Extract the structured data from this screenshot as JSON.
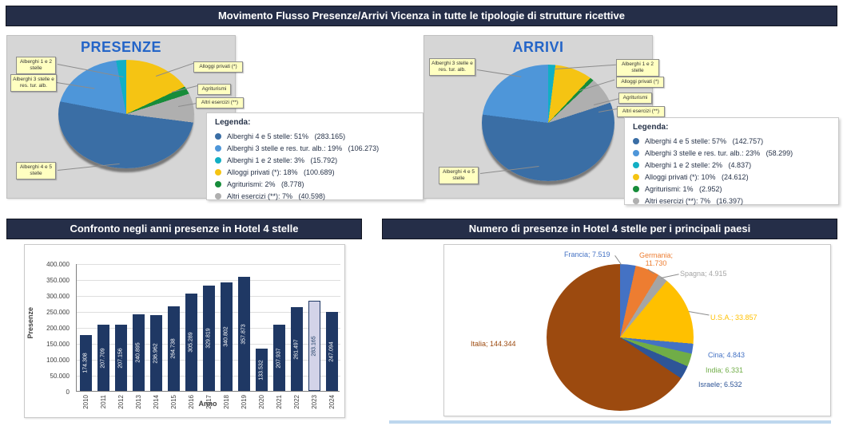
{
  "header": {
    "title": "Movimento Flusso Presenze/Arrivi Vicenza in tutte le tipologie di strutture ricettive"
  },
  "chart_data": [
    {
      "type": "pie",
      "title": "PRESENZE",
      "legend_title": "Legenda:",
      "legend_position": "right",
      "slices": [
        {
          "label": "Alberghi 4 e 5 stelle",
          "pct": 51,
          "value": 283165,
          "value_label": "283.165",
          "color": "#3A6EA5"
        },
        {
          "label": "Alberghi 3 stelle e res. tur. alb.",
          "pct": 19,
          "value": 106273,
          "value_label": "106.273",
          "color": "#4E96D9"
        },
        {
          "label": "Alberghi 1 e 2 stelle",
          "pct": 3,
          "value": 15792,
          "value_label": "15.792",
          "color": "#12AFC4"
        },
        {
          "label": "Alloggi privati (*)",
          "pct": 18,
          "value": 100689,
          "value_label": "100.689",
          "color": "#F5C413"
        },
        {
          "label": "Agriturismi",
          "pct": 2,
          "value": 8778,
          "value_label": "8.778",
          "color": "#178C3A"
        },
        {
          "label": "Altri esercizi (**)",
          "pct": 7,
          "value": 40598,
          "value_label": "40.598",
          "color": "#AFAFAF"
        }
      ],
      "draw_order": [
        3,
        4,
        5,
        0,
        1,
        2
      ]
    },
    {
      "type": "pie",
      "title": "ARRIVI",
      "legend_title": "Legenda:",
      "legend_position": "right",
      "slices": [
        {
          "label": "Alberghi 4 e 5 stelle",
          "pct": 57,
          "value": 142757,
          "value_label": "142.757",
          "color": "#3A6EA5"
        },
        {
          "label": "Alberghi 3 stelle e res. tur. alb.",
          "pct": 23,
          "value": 58299,
          "value_label": "58.299",
          "color": "#4E96D9"
        },
        {
          "label": "Alberghi 1 e 2 stelle",
          "pct": 2,
          "value": 4837,
          "value_label": "4.837",
          "color": "#12AFC4"
        },
        {
          "label": "Alloggi privati (*)",
          "pct": 10,
          "value": 24612,
          "value_label": "24.612",
          "color": "#F5C413"
        },
        {
          "label": "Agriturismi",
          "pct": 1,
          "value": 2952,
          "value_label": "2.952",
          "color": "#178C3A"
        },
        {
          "label": "Altri esercizi (**)",
          "pct": 7,
          "value": 16397,
          "value_label": "16.397",
          "color": "#AFAFAF"
        }
      ],
      "draw_order": [
        2,
        3,
        4,
        5,
        0,
        1
      ]
    },
    {
      "type": "bar",
      "title": "Confronto negli anni presenze in Hotel 4 stelle",
      "xlabel": "Anno",
      "ylabel": "Presenze",
      "categories": [
        "2010",
        "2011",
        "2012",
        "2013",
        "2014",
        "2015",
        "2016",
        "2017",
        "2018",
        "2019",
        "2020",
        "2021",
        "2022",
        "2023",
        "2024"
      ],
      "values": [
        174308,
        207709,
        207156,
        240895,
        236962,
        264738,
        305289,
        329819,
        340802,
        357873,
        133532,
        207937,
        261497,
        283165,
        247094
      ],
      "value_labels": [
        "174.308",
        "207.709",
        "207.156",
        "240.895",
        "236.962",
        "264.738",
        "305.289",
        "329.819",
        "340.802",
        "357.873",
        "133.532",
        "207.937",
        "261.497",
        "283.165",
        "247.094"
      ],
      "ylim": [
        0,
        400000
      ],
      "yticks": [
        "0",
        "50.000",
        "100.000",
        "150.000",
        "200.000",
        "250.000",
        "300.000",
        "350.000",
        "400.000"
      ],
      "grid": true,
      "bar_color": "#1F3864",
      "highlight_index": 13,
      "highlight_color": "#D3D3E8",
      "highlight_text_color": "#17375E"
    },
    {
      "type": "pie",
      "title": "Numero di presenze in Hotel 4 stelle per i principali paesi",
      "slices": [
        {
          "label": "Francia",
          "value": 7519,
          "callout": "Francia; 7.519",
          "color": "#4472C4"
        },
        {
          "label": "Germania",
          "value": 11730,
          "callout": "Germania; 11.730",
          "color": "#ED7D31"
        },
        {
          "label": "Spagna",
          "value": 4915,
          "callout": "Spagna; 4.915",
          "color": "#A5A5A5"
        },
        {
          "label": "U.S.A.",
          "value": 33857,
          "callout": "U.S.A.; 33.857",
          "color": "#FFC000"
        },
        {
          "label": "Cina",
          "value": 4843,
          "callout": "Cina; 4.843",
          "color": "#4472C4"
        },
        {
          "label": "India",
          "value": 6331,
          "callout": "India; 6.331",
          "color": "#70AD47"
        },
        {
          "label": "Israele",
          "value": 6532,
          "callout": "Israele; 6.532",
          "color": "#2E5597"
        },
        {
          "label": "Italia",
          "value": 144344,
          "callout": "Italia; 144.344",
          "color": "#9C4A0F"
        }
      ]
    }
  ]
}
